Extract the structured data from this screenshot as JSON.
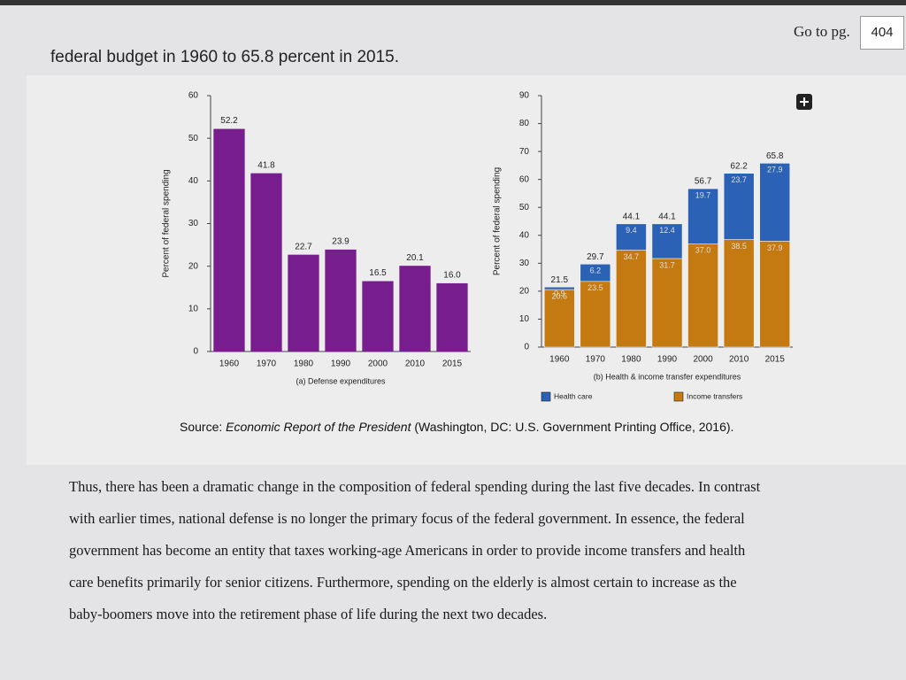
{
  "page": {
    "nav_label": "Go to pg.",
    "page_number": "404",
    "lead_text": "federal budget in 1960 to 65.8 percent in 2015.",
    "source": {
      "prefix": "Source:",
      "title": "Economic Report of the President",
      "rest": "(Washington, DC: U.S. Government Printing Office, 2016)."
    },
    "paragraph": [
      "Thus, there has been a dramatic change in the composition of federal spending during the last five decades. In contrast",
      "with earlier times, national defense is no longer the primary focus of the federal government. In essence, the federal",
      "government has become an entity that taxes working-age Americans in order to provide income transfers and health",
      "care benefits primarily for senior citizens. Furthermore, spending on the elderly is almost certain to increase as the",
      "baby-boomers move into the retirement phase of life during the next two decades."
    ]
  },
  "chart_data": [
    {
      "type": "bar",
      "xlabel": "(a) Defense expenditures",
      "ylabel": "Percent of federal spending",
      "categories": [
        "1960",
        "1970",
        "1980",
        "1990",
        "2000",
        "2010",
        "2015"
      ],
      "values": [
        52.2,
        41.8,
        22.7,
        23.9,
        16.5,
        20.1,
        16.0
      ],
      "value_labels": [
        "52.2",
        "41.8",
        "22.7",
        "23.9",
        "16.5",
        "20.1",
        "16.0"
      ],
      "color": "#771d8d",
      "ylim": [
        0,
        60
      ],
      "yticks": [
        0,
        10,
        20,
        30,
        40,
        50,
        60
      ]
    },
    {
      "type": "stacked_bar",
      "xlabel": "(b) Health & income transfer expenditures",
      "ylabel": "Percent of federal spending",
      "categories": [
        "1960",
        "1970",
        "1980",
        "1990",
        "2000",
        "2010",
        "2015"
      ],
      "series": [
        {
          "name": "Income transfers",
          "color": "#c47a10",
          "values": [
            20.6,
            23.5,
            34.7,
            31.7,
            37.0,
            38.5,
            37.9
          ],
          "value_labels": [
            "20.6",
            "23.5",
            "34.7",
            "31.7",
            "37.0",
            "38.5",
            "37.9"
          ]
        },
        {
          "name": "Health care",
          "color": "#2b62b5",
          "values": [
            0.9,
            6.2,
            9.4,
            12.4,
            19.7,
            23.7,
            27.9
          ]
        }
      ],
      "totals": [
        21.5,
        29.7,
        44.1,
        44.1,
        56.7,
        62.2,
        65.8
      ],
      "legend_order": [
        "Health care",
        "Income transfers"
      ],
      "ylim": [
        0,
        90
      ],
      "yticks": [
        0,
        10,
        20,
        30,
        40,
        50,
        60,
        70,
        80,
        90
      ]
    }
  ]
}
